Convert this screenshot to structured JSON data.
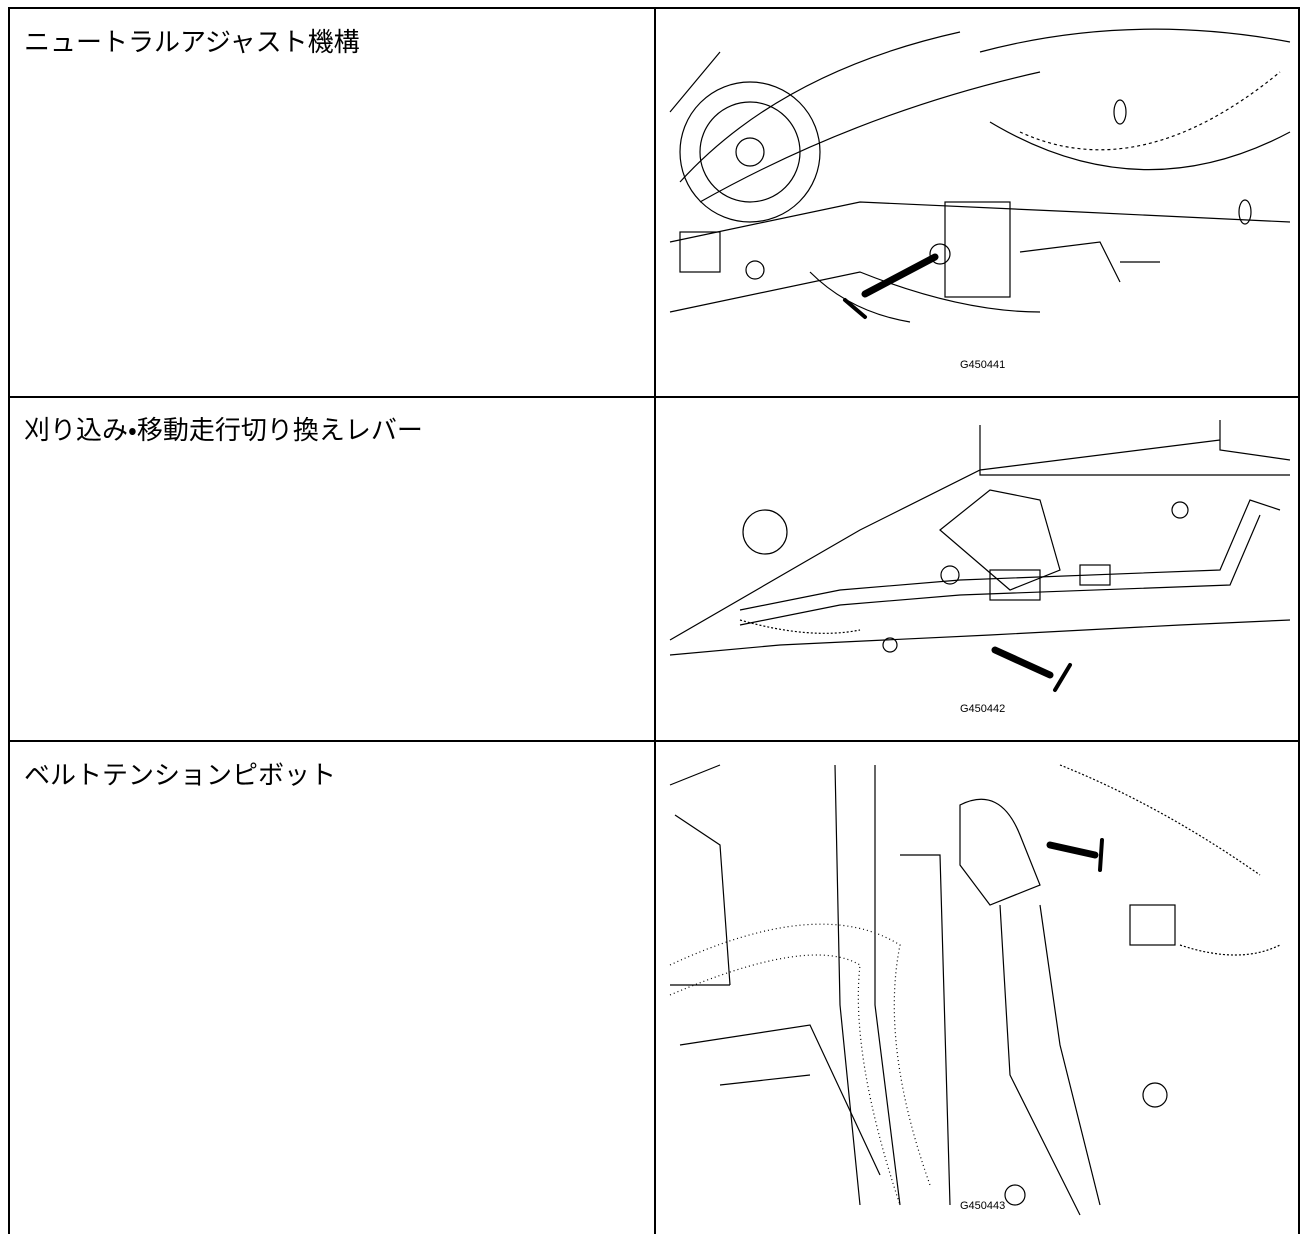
{
  "rows": [
    {
      "label": "ニュートラルアジャスト機構",
      "figure_code": "G450441"
    },
    {
      "label": "刈り込み・移動走行切り換えレバー",
      "figure_code": "G450442"
    },
    {
      "label": "ベルトテンションピボット",
      "figure_code": "G450443"
    }
  ]
}
